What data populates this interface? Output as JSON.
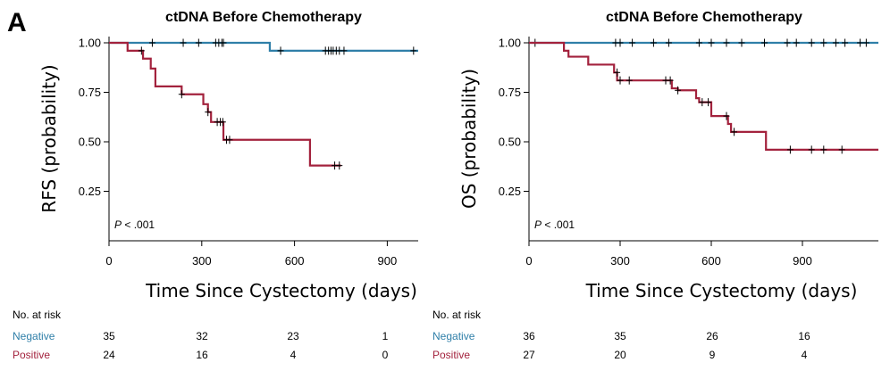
{
  "figure": {
    "panel_letter": "A",
    "risk_header": "No. at risk",
    "colors": {
      "negative": "#2f7fa8",
      "positive": "#a3223d",
      "axis": "#000000"
    }
  },
  "chart_data": [
    {
      "type": "line",
      "subtype": "kaplan-meier",
      "title": "ctDNA Before Chemotherapy",
      "xlabel": "Time Since Cystectomy (days)",
      "ylabel": "RFS (probability)",
      "xlim": [
        0,
        1000
      ],
      "ylim": [
        0,
        1.0
      ],
      "x_ticks": [
        0,
        300,
        600,
        900
      ],
      "y_ticks": [
        0.25,
        0.5,
        0.75,
        1.0
      ],
      "y_tick_labels": [
        "0.25",
        "0.50",
        "0.75",
        "1.00"
      ],
      "p_prefix": "P",
      "p_value": "< .001",
      "series": [
        {
          "name": "Negative",
          "color": "#2f7fa8",
          "steps": [
            [
              0,
              1.0
            ],
            [
              520,
              0.96
            ],
            [
              1000,
              0.96
            ]
          ],
          "censors": [
            [
              140,
              1.0
            ],
            [
              240,
              1.0
            ],
            [
              290,
              1.0
            ],
            [
              345,
              1.0
            ],
            [
              355,
              1.0
            ],
            [
              365,
              1.0
            ],
            [
              370,
              1.0
            ],
            [
              555,
              0.96
            ],
            [
              700,
              0.96
            ],
            [
              710,
              0.96
            ],
            [
              718,
              0.96
            ],
            [
              725,
              0.96
            ],
            [
              735,
              0.96
            ],
            [
              745,
              0.96
            ],
            [
              760,
              0.96
            ],
            [
              985,
              0.96
            ]
          ]
        },
        {
          "name": "Positive",
          "color": "#a3223d",
          "steps": [
            [
              0,
              1.0
            ],
            [
              60,
              0.96
            ],
            [
              110,
              0.92
            ],
            [
              135,
              0.87
            ],
            [
              150,
              0.78
            ],
            [
              235,
              0.74
            ],
            [
              305,
              0.69
            ],
            [
              320,
              0.65
            ],
            [
              330,
              0.6
            ],
            [
              370,
              0.51
            ],
            [
              650,
              0.38
            ],
            [
              750,
              0.38
            ]
          ],
          "censors": [
            [
              105,
              0.96
            ],
            [
              235,
              0.74
            ],
            [
              320,
              0.65
            ],
            [
              350,
              0.6
            ],
            [
              360,
              0.6
            ],
            [
              368,
              0.6
            ],
            [
              380,
              0.51
            ],
            [
              390,
              0.51
            ],
            [
              730,
              0.38
            ],
            [
              745,
              0.38
            ]
          ]
        }
      ],
      "risk_table": {
        "times": [
          0,
          300,
          600,
          900
        ],
        "Negative": [
          "35",
          "32",
          "23",
          "1"
        ],
        "Positive": [
          "24",
          "16",
          "4",
          "0"
        ]
      }
    },
    {
      "type": "line",
      "subtype": "kaplan-meier",
      "title": "ctDNA Before Chemotherapy",
      "xlabel": "Time Since Cystectomy (days)",
      "ylabel": "OS (probability)",
      "xlim": [
        0,
        1150
      ],
      "ylim": [
        0,
        1.0
      ],
      "x_ticks": [
        0,
        300,
        600,
        900
      ],
      "y_ticks": [
        0.25,
        0.5,
        0.75,
        1.0
      ],
      "y_tick_labels": [
        "0.25",
        "0.50",
        "0.75",
        "1.00"
      ],
      "p_prefix": "P",
      "p_value": "< .001",
      "series": [
        {
          "name": "Negative",
          "color": "#2f7fa8",
          "steps": [
            [
              0,
              1.0
            ],
            [
              1150,
              1.0
            ]
          ],
          "censors": [
            [
              20,
              1.0
            ],
            [
              285,
              1.0
            ],
            [
              300,
              1.0
            ],
            [
              340,
              1.0
            ],
            [
              410,
              1.0
            ],
            [
              460,
              1.0
            ],
            [
              560,
              1.0
            ],
            [
              600,
              1.0
            ],
            [
              650,
              1.0
            ],
            [
              700,
              1.0
            ],
            [
              775,
              1.0
            ],
            [
              850,
              1.0
            ],
            [
              880,
              1.0
            ],
            [
              930,
              1.0
            ],
            [
              970,
              1.0
            ],
            [
              1010,
              1.0
            ],
            [
              1040,
              1.0
            ],
            [
              1090,
              1.0
            ],
            [
              1110,
              1.0
            ]
          ]
        },
        {
          "name": "Positive",
          "color": "#a3223d",
          "steps": [
            [
              0,
              1.0
            ],
            [
              115,
              0.96
            ],
            [
              130,
              0.93
            ],
            [
              195,
              0.89
            ],
            [
              280,
              0.85
            ],
            [
              290,
              0.81
            ],
            [
              470,
              0.77
            ],
            [
              490,
              0.76
            ],
            [
              550,
              0.72
            ],
            [
              560,
              0.7
            ],
            [
              600,
              0.63
            ],
            [
              655,
              0.59
            ],
            [
              665,
              0.55
            ],
            [
              780,
              0.46
            ],
            [
              1150,
              0.46
            ]
          ],
          "censors": [
            [
              290,
              0.85
            ],
            [
              300,
              0.81
            ],
            [
              330,
              0.81
            ],
            [
              450,
              0.81
            ],
            [
              465,
              0.81
            ],
            [
              490,
              0.76
            ],
            [
              570,
              0.7
            ],
            [
              590,
              0.7
            ],
            [
              650,
              0.63
            ],
            [
              675,
              0.55
            ],
            [
              860,
              0.46
            ],
            [
              930,
              0.46
            ],
            [
              970,
              0.46
            ],
            [
              1030,
              0.46
            ]
          ]
        }
      ],
      "risk_table": {
        "times": [
          0,
          300,
          600,
          900
        ],
        "Negative": [
          "36",
          "35",
          "26",
          "16"
        ],
        "Positive": [
          "27",
          "20",
          "9",
          "4"
        ]
      }
    }
  ]
}
